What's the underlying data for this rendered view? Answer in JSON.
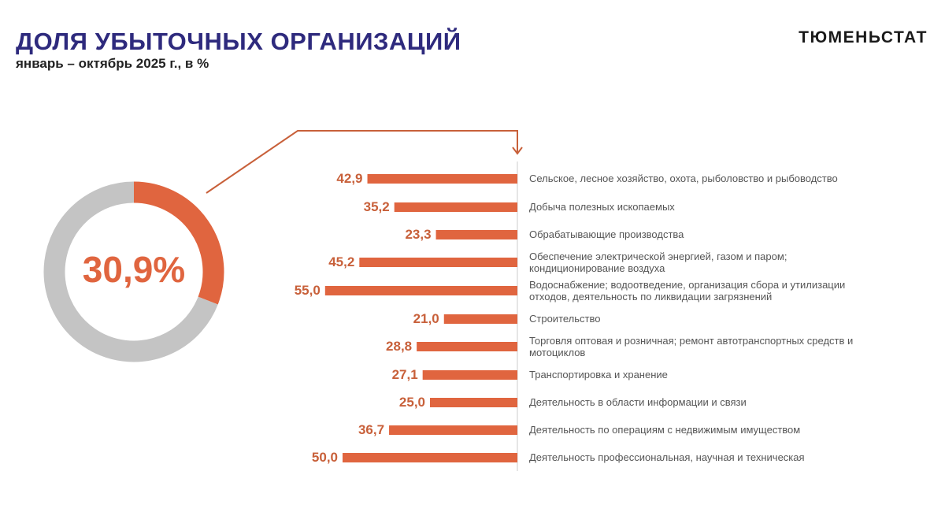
{
  "header": {
    "title": "ДОЛЯ УБЫТОЧНЫХ ОРГАНИЗАЦИЙ",
    "subtitle": "январь – октябрь  2025 г., в %",
    "logo": "ТЮМЕНЬСТАТ"
  },
  "colors": {
    "accent": "#e0653f",
    "ring_rest": "#c4c4c4",
    "title": "#2e2a7d"
  },
  "chart_data": [
    {
      "type": "pie",
      "variant": "donut",
      "values": [
        30.9,
        69.1
      ],
      "center_label": "30,9%"
    },
    {
      "type": "bar",
      "orientation": "horizontal",
      "categories": [
        "Сельское, лесное хозяйство, охота, рыболовство и рыбоводство",
        "Добыча полезных ископаемых",
        "Обрабатывающие производства",
        "Обеспечение электрической энергией, газом и паром; кондиционирование воздуха",
        "Водоснабжение; водоотведение, организация сбора и утилизации отходов, деятельность по ликвидации загрязнений",
        "Строительство",
        "Торговля оптовая и розничная; ремонт автотранспортных средств и мотоциклов",
        "Транспортировка и хранение",
        "Деятельность в области информации и связи",
        "Деятельность по операциям с недвижимым имуществом",
        "Деятельность профессиональная, научная и техническая"
      ],
      "values": [
        42.9,
        35.2,
        23.3,
        45.2,
        55.0,
        21.0,
        28.8,
        27.1,
        25.0,
        36.7,
        50.0
      ],
      "value_labels": [
        "42,9",
        "35,2",
        "23,3",
        "45,2",
        "55,0",
        "21,0",
        "28,8",
        "27,1",
        "25,0",
        "36,7",
        "50,0"
      ]
    }
  ]
}
